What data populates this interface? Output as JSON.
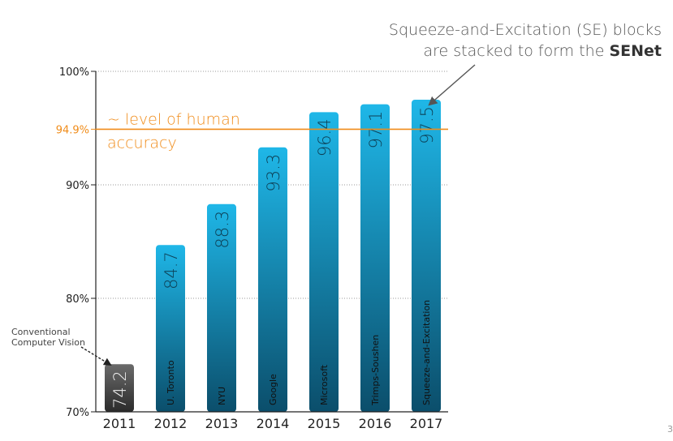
{
  "slide": {
    "callout_line1": "Squeeze-and-Excitation (SE) blocks",
    "callout_line2_prefix": "are stacked to form the ",
    "callout_line2_bold": "SENet",
    "cv_annotation_line1": "Conventional",
    "cv_annotation_line2": "Computer Vision",
    "page_number": "3"
  },
  "colors": {
    "bar_top": "#1fb7e8",
    "bar_bottom": "#0b4e6b",
    "bar_gray_top": "#6b6b6b",
    "bar_gray_bottom": "#2b2b2b",
    "human_line": "#f08c1a",
    "axis": "#222222",
    "grid": "#9a9a9a",
    "callout_arrow": "#555555"
  },
  "chart_data": {
    "type": "bar",
    "categories": [
      "2011",
      "2012",
      "2013",
      "2014",
      "2015",
      "2016",
      "2017"
    ],
    "values": [
      74.2,
      84.7,
      88.3,
      93.3,
      96.4,
      97.1,
      97.5
    ],
    "bar_labels": [
      "",
      "U. Toronto",
      "NYU",
      "Google",
      "Microsoft",
      "Trimps-Soushen",
      "Squeeze-and-Excitation"
    ],
    "ylim": [
      70,
      100
    ],
    "yticks": [
      {
        "value": 100,
        "label": "100%"
      },
      {
        "value": 94.9,
        "label": "94.9%"
      },
      {
        "value": 90,
        "label": "90%"
      },
      {
        "value": 80,
        "label": "80%"
      },
      {
        "value": 70,
        "label": "70%"
      }
    ],
    "grid": true,
    "reference_line": {
      "value": 94.9,
      "label_line1": "~ level of human",
      "label_line2": "accuracy"
    }
  }
}
